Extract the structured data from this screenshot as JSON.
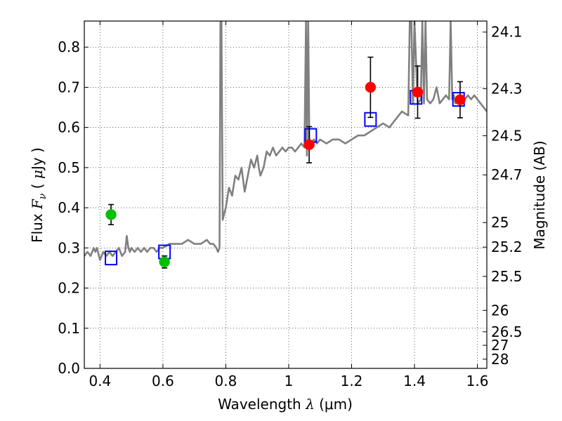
{
  "chart_data": {
    "type": "scatter",
    "xlabel": {
      "prefix": "Wavelength  ",
      "symbol": "λ",
      "unit": " (μm)"
    },
    "ylabel": {
      "prefix": "Flux  ",
      "symbol": "F",
      "subscript": "ν",
      "unit_open": "  ( ",
      "unit_mu": "μ",
      "unit_rest": "Jy )"
    },
    "y2label": "Magnitude (AB)",
    "xlim": [
      0.35,
      1.63
    ],
    "ylim": [
      0.0,
      0.865
    ],
    "grid": true,
    "x_ticks": [
      0.4,
      0.6,
      0.8,
      1.0,
      1.2,
      1.4,
      1.6
    ],
    "x_tick_labels": [
      "0.4",
      "0.6",
      "0.8",
      "1",
      "1.2",
      "1.4",
      "1.6"
    ],
    "y_ticks": [
      0.0,
      0.1,
      0.2,
      0.3,
      0.4,
      0.5,
      0.6,
      0.7,
      0.8
    ],
    "y_tick_labels": [
      "0.0",
      "0.1",
      "0.2",
      "0.3",
      "0.4",
      "0.5",
      "0.6",
      "0.7",
      "0.8"
    ],
    "magnitude_ticks": [
      {
        "label": "24.1",
        "flux": 0.8375
      },
      {
        "label": "24.3",
        "flux": 0.6966
      },
      {
        "label": "24.5",
        "flux": 0.5794
      },
      {
        "label": "24.7",
        "flux": 0.4819
      },
      {
        "label": "25",
        "flux": 0.3631
      },
      {
        "label": "25.2",
        "flux": 0.302
      },
      {
        "label": "25.5",
        "flux": 0.2291
      },
      {
        "label": "26",
        "flux": 0.1445
      },
      {
        "label": "26.5",
        "flux": 0.0912
      },
      {
        "label": "27",
        "flux": 0.0575
      },
      {
        "label": "28",
        "flux": 0.0229
      }
    ],
    "model_spectrum": {
      "color": "#808080",
      "x": [
        0.35,
        0.36,
        0.37,
        0.38,
        0.385,
        0.39,
        0.4,
        0.41,
        0.42,
        0.43,
        0.44,
        0.45,
        0.46,
        0.47,
        0.48,
        0.485,
        0.49,
        0.495,
        0.5,
        0.51,
        0.52,
        0.53,
        0.54,
        0.55,
        0.56,
        0.57,
        0.58,
        0.59,
        0.6,
        0.62,
        0.64,
        0.66,
        0.68,
        0.7,
        0.72,
        0.74,
        0.75,
        0.76,
        0.77,
        0.775,
        0.78,
        0.783,
        0.786,
        0.79,
        0.8,
        0.81,
        0.82,
        0.83,
        0.84,
        0.85,
        0.86,
        0.87,
        0.875,
        0.88,
        0.89,
        0.9,
        0.905,
        0.91,
        0.92,
        0.93,
        0.94,
        0.95,
        0.96,
        0.97,
        0.98,
        0.99,
        1.0,
        1.01,
        1.02,
        1.03,
        1.04,
        1.05,
        1.055,
        1.058,
        1.062,
        1.066,
        1.07,
        1.08,
        1.09,
        1.1,
        1.12,
        1.14,
        1.16,
        1.18,
        1.2,
        1.22,
        1.24,
        1.26,
        1.28,
        1.3,
        1.32,
        1.34,
        1.36,
        1.38,
        1.385,
        1.39,
        1.395,
        1.4,
        1.41,
        1.42,
        1.425,
        1.43,
        1.435,
        1.44,
        1.45,
        1.46,
        1.47,
        1.48,
        1.49,
        1.5,
        1.51,
        1.515,
        1.52,
        1.525,
        1.53,
        1.54,
        1.55,
        1.56,
        1.57,
        1.58,
        1.59,
        1.6,
        1.61,
        1.62,
        1.63
      ],
      "y": [
        0.28,
        0.29,
        0.28,
        0.3,
        0.29,
        0.3,
        0.27,
        0.29,
        0.28,
        0.29,
        0.28,
        0.29,
        0.3,
        0.28,
        0.29,
        0.33,
        0.3,
        0.29,
        0.3,
        0.29,
        0.3,
        0.29,
        0.3,
        0.29,
        0.3,
        0.3,
        0.29,
        0.3,
        0.3,
        0.31,
        0.31,
        0.31,
        0.32,
        0.31,
        0.31,
        0.32,
        0.31,
        0.31,
        0.3,
        0.29,
        0.3,
        0.865,
        0.865,
        0.37,
        0.4,
        0.45,
        0.43,
        0.48,
        0.47,
        0.5,
        0.44,
        0.48,
        0.5,
        0.52,
        0.5,
        0.53,
        0.5,
        0.48,
        0.5,
        0.54,
        0.53,
        0.55,
        0.53,
        0.54,
        0.55,
        0.54,
        0.55,
        0.55,
        0.54,
        0.55,
        0.56,
        0.55,
        0.865,
        0.53,
        0.865,
        0.55,
        0.56,
        0.57,
        0.56,
        0.57,
        0.56,
        0.57,
        0.57,
        0.56,
        0.57,
        0.58,
        0.58,
        0.59,
        0.6,
        0.61,
        0.6,
        0.62,
        0.64,
        0.63,
        0.865,
        0.865,
        0.66,
        0.865,
        0.66,
        0.67,
        0.865,
        0.66,
        0.865,
        0.67,
        0.66,
        0.67,
        0.7,
        0.66,
        0.67,
        0.68,
        0.67,
        0.865,
        0.67,
        0.68,
        0.66,
        0.68,
        0.67,
        0.67,
        0.68,
        0.67,
        0.68,
        0.67,
        0.66,
        0.65,
        0.64
      ]
    },
    "series": [
      {
        "marker": "square",
        "color": "#0000ff",
        "x": [
          0.435,
          0.605,
          1.07,
          1.26,
          1.405,
          1.54
        ],
        "y": [
          0.275,
          0.29,
          0.58,
          0.62,
          0.675,
          0.67
        ]
      },
      {
        "marker": "circle",
        "color": "#00c000",
        "x": [
          0.435,
          0.605
        ],
        "y": [
          0.383,
          0.265
        ],
        "yerr": [
          0.025,
          0.015
        ]
      },
      {
        "marker": "circle",
        "color": "#ff0000",
        "x": [
          1.065,
          1.26,
          1.41,
          1.545
        ],
        "y": [
          0.557,
          0.7,
          0.688,
          0.669
        ],
        "yerr": [
          0.045,
          0.075,
          0.065,
          0.045
        ]
      }
    ]
  }
}
